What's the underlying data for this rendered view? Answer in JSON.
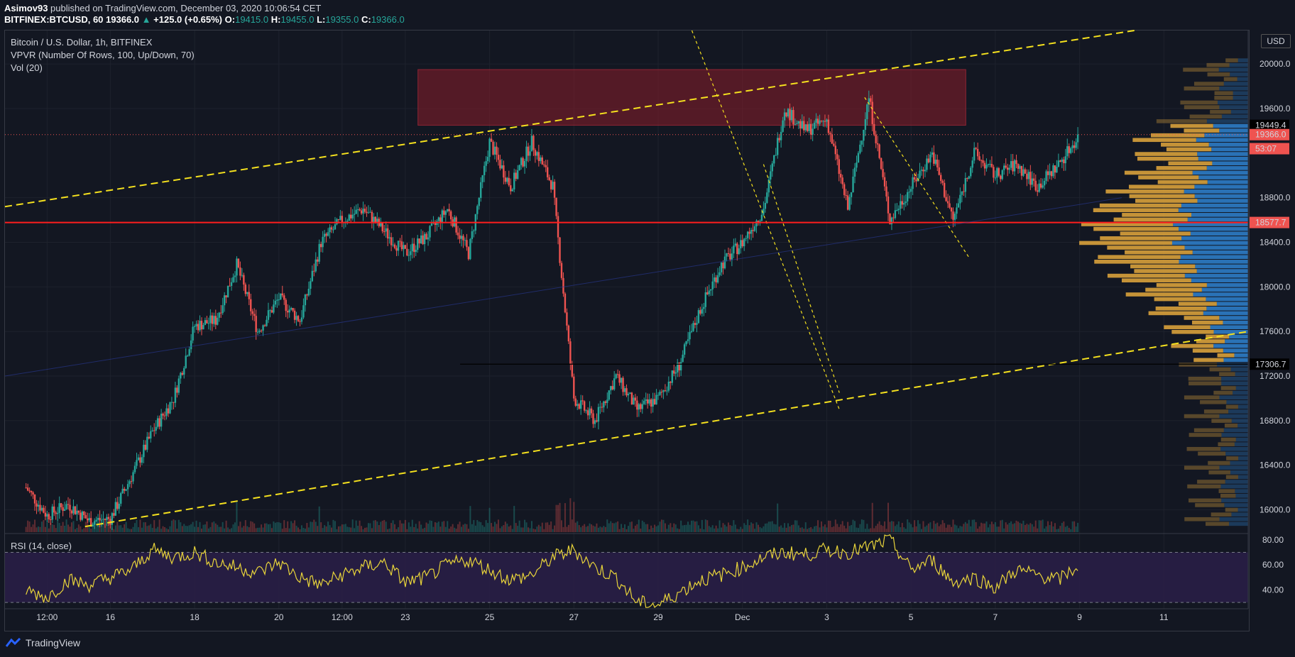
{
  "header": {
    "publisher": "Asimov93",
    "published_text": "published on TradingView.com, December 03, 2020 10:06:54 CET",
    "symbol": "BITFINEX:BTCUSD, 60",
    "last": "19366.0",
    "change": "+125.0 (+0.65%)",
    "o_label": "O:",
    "o": "19415.0",
    "h_label": "H:",
    "h": "19455.0",
    "l_label": "L:",
    "l": "19355.0",
    "c_label": "C:",
    "c": "19366.0"
  },
  "legend": {
    "title": "Bitcoin / U.S. Dollar, 1h, BITFINEX",
    "vpvr": "VPVR (Number Of Rows, 100, Up/Down, 70)",
    "vol": "Vol (20)",
    "rsi": "RSI (14, close)"
  },
  "currency_button": "USD",
  "footer": {
    "brand": "TradingView"
  },
  "colors": {
    "background": "#131722",
    "up": "#26a69a",
    "down": "#ef5350",
    "channel": "#f5e11e",
    "support": "#ff1e1e",
    "resistance_zone": "#8b1e2a",
    "vpvr_up": "#d9a13b",
    "vpvr_down": "#2e7cc6",
    "rsi_line": "#e8d43a",
    "rsi_band": "#2a1f48"
  },
  "chart_data": {
    "type": "candlestick",
    "price_axis": {
      "ylim": [
        15800,
        20300
      ],
      "ticks": [
        "20000.0",
        "19600.0",
        "19449.4",
        "19366.0",
        "53:07",
        "18800.0",
        "18577.7",
        "18400.0",
        "18000.0",
        "17600.0",
        "17306.7",
        "17200.0",
        "16800.0",
        "16400.0",
        "16000.0"
      ],
      "markers": [
        {
          "label": "19449.4",
          "value": 19449.4,
          "style": "black"
        },
        {
          "label": "19366.0",
          "value": 19366.0,
          "style": "red"
        },
        {
          "label": "53:07",
          "value": 19240,
          "style": "red"
        },
        {
          "label": "18577.7",
          "value": 18577.7,
          "style": "red"
        },
        {
          "label": "17306.7",
          "value": 17306.7,
          "style": "black"
        }
      ]
    },
    "price_ticks": [
      20000,
      19600,
      18800,
      18400,
      18000,
      17600,
      17200,
      16800,
      16400,
      16000
    ],
    "time_axis": {
      "labels": [
        "12:00",
        "16",
        "18",
        "20",
        "12:00",
        "23",
        "25",
        "27",
        "29",
        "Dec",
        "3",
        "5",
        "7",
        "9",
        "11"
      ],
      "label_days": [
        -1.5,
        0,
        2,
        4,
        5.5,
        7,
        9,
        11,
        13,
        15,
        17,
        19,
        21,
        23,
        25
      ]
    },
    "key_levels": {
      "support": 18577.7,
      "resistance_zone": [
        19450,
        19950
      ],
      "horizontal": 17306.7
    },
    "price_path": [
      [
        -2.0,
        16200
      ],
      [
        -1.5,
        15950
      ],
      [
        -1.0,
        16050
      ],
      [
        -0.5,
        15900
      ],
      [
        0.0,
        15920
      ],
      [
        0.5,
        16300
      ],
      [
        1.0,
        16700
      ],
      [
        1.5,
        17000
      ],
      [
        2.0,
        17650
      ],
      [
        2.5,
        17700
      ],
      [
        3.0,
        18200
      ],
      [
        3.5,
        17600
      ],
      [
        4.0,
        17900
      ],
      [
        4.5,
        17700
      ],
      [
        5.0,
        18400
      ],
      [
        5.5,
        18600
      ],
      [
        6.0,
        18700
      ],
      [
        6.5,
        18500
      ],
      [
        7.0,
        18300
      ],
      [
        7.5,
        18450
      ],
      [
        8.0,
        18700
      ],
      [
        8.5,
        18300
      ],
      [
        9.0,
        19300
      ],
      [
        9.5,
        18900
      ],
      [
        10.0,
        19300
      ],
      [
        10.5,
        18900
      ],
      [
        11.0,
        17000
      ],
      [
        11.5,
        16800
      ],
      [
        12.0,
        17200
      ],
      [
        12.5,
        16900
      ],
      [
        13.0,
        17000
      ],
      [
        13.5,
        17300
      ],
      [
        14.0,
        17800
      ],
      [
        14.5,
        18200
      ],
      [
        15.0,
        18400
      ],
      [
        15.5,
        18700
      ],
      [
        16.0,
        19600
      ],
      [
        16.5,
        19400
      ],
      [
        17.0,
        19500
      ],
      [
        17.5,
        18700
      ],
      [
        18.0,
        19700
      ],
      [
        18.5,
        18600
      ],
      [
        19.0,
        18900
      ],
      [
        19.5,
        19200
      ],
      [
        20.0,
        18600
      ],
      [
        20.5,
        19200
      ],
      [
        21.0,
        19000
      ],
      [
        21.5,
        19100
      ],
      [
        22.0,
        18900
      ],
      [
        22.5,
        19100
      ],
      [
        23.0,
        19366
      ]
    ],
    "rsi": {
      "ylim": [
        25,
        85
      ],
      "ticks": [
        80,
        60,
        40
      ],
      "bands": [
        70,
        30
      ],
      "values": [
        40,
        34,
        48,
        44,
        50,
        56,
        72,
        66,
        70,
        62,
        58,
        54,
        62,
        50,
        44,
        52,
        58,
        62,
        46,
        50,
        60,
        64,
        56,
        48,
        52,
        66,
        72,
        58,
        50,
        30,
        28,
        38,
        48,
        52,
        58,
        66,
        70,
        68,
        72,
        70,
        74,
        80,
        56,
        64,
        46,
        50,
        42,
        56,
        52,
        48,
        60
      ]
    }
  }
}
